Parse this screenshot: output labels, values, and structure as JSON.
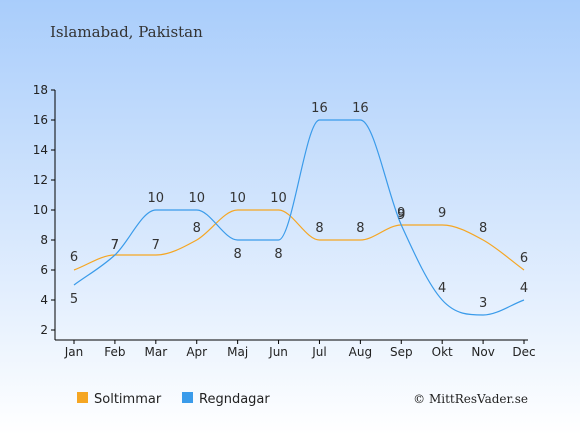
{
  "header": {
    "title": "Islamabad, Pakistan"
  },
  "credit": "© MittResVader.se",
  "colors": {
    "bg_top": "#a9cdfb",
    "bg_bottom": "#ffffff",
    "sun": "#f5a623",
    "rain": "#3a9bea",
    "axis": "#000000"
  },
  "chart_data": {
    "type": "line",
    "categories": [
      "Jan",
      "Feb",
      "Mar",
      "Apr",
      "Maj",
      "Jun",
      "Jul",
      "Aug",
      "Sep",
      "Okt",
      "Nov",
      "Dec"
    ],
    "series": [
      {
        "name": "Soltimmar",
        "color_key": "sun",
        "values": [
          6,
          7,
          7,
          8,
          10,
          10,
          8,
          8,
          9,
          9,
          8,
          6
        ]
      },
      {
        "name": "Regndagar",
        "color_key": "rain",
        "values": [
          5,
          7,
          10,
          10,
          8,
          8,
          16,
          16,
          9,
          4,
          3,
          4
        ]
      }
    ],
    "yticks": [
      2,
      4,
      6,
      8,
      10,
      12,
      14,
      16,
      18
    ],
    "ylim": [
      2,
      18
    ],
    "xlabel": "",
    "ylabel": "",
    "legend_position": "bottom-left",
    "grid": false
  }
}
